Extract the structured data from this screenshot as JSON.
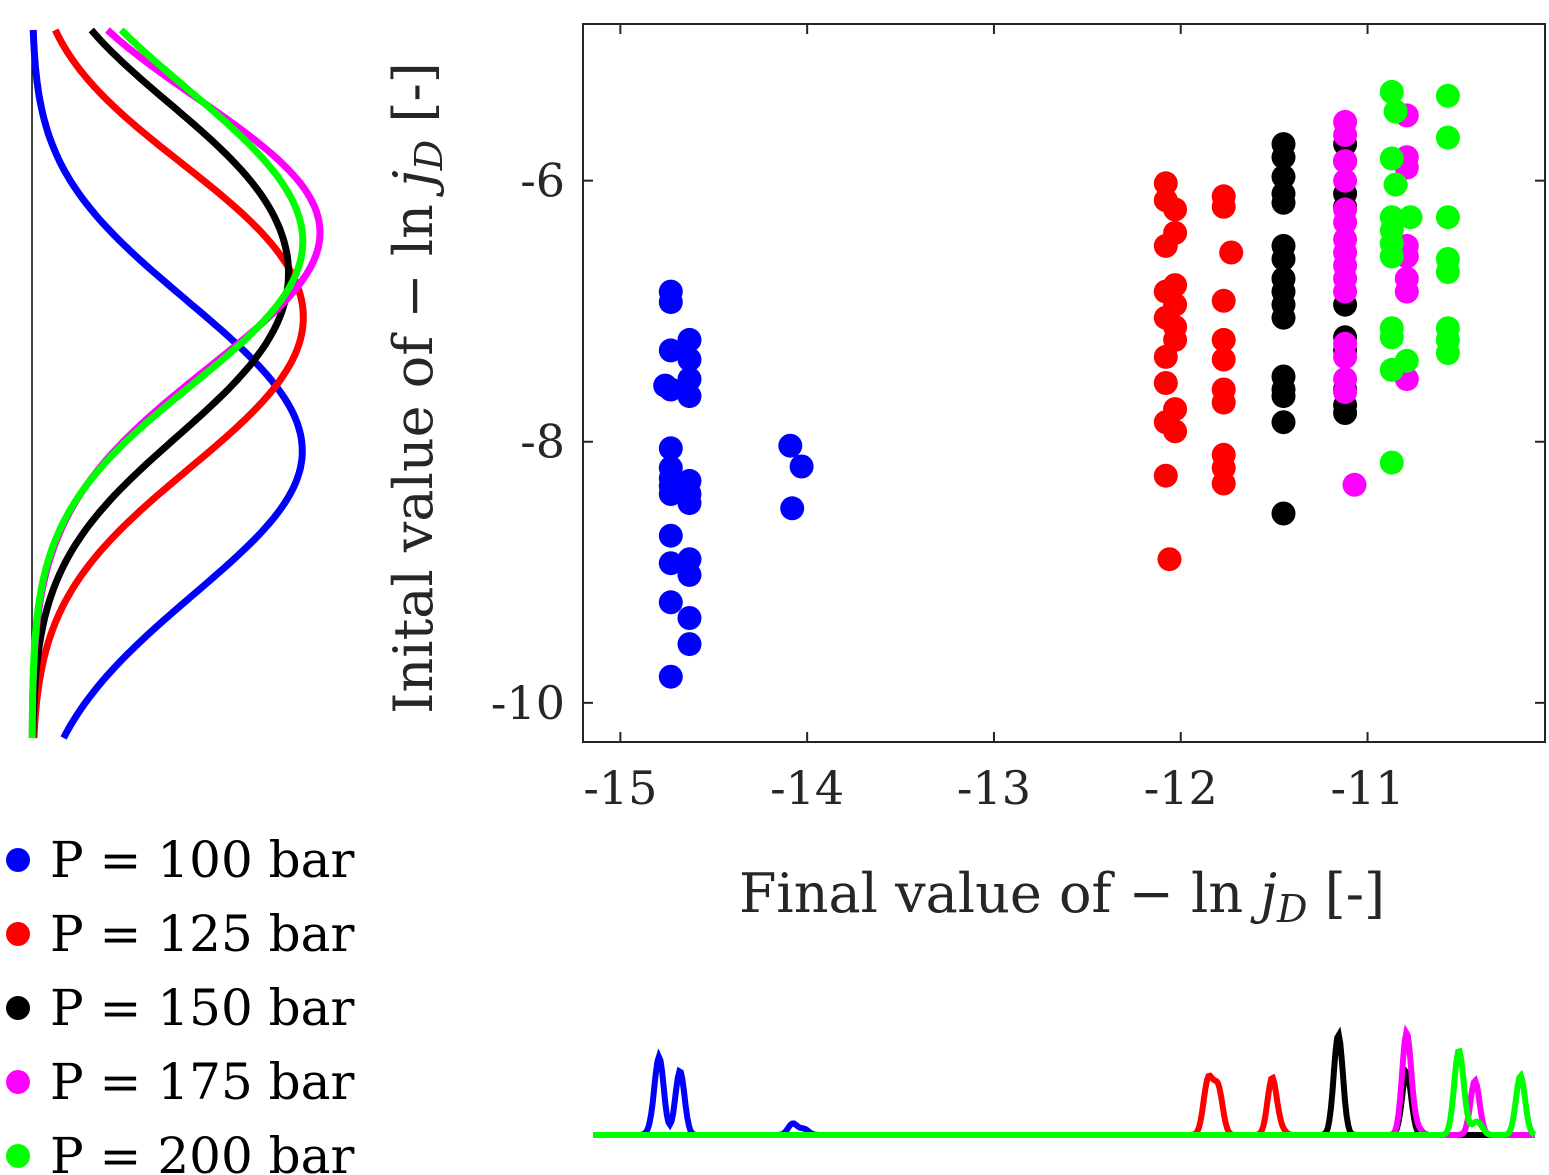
{
  "chart_data": {
    "type": "scatter",
    "xlabel": "Final value of − ln j_D [-]",
    "ylabel": "Inital value of − ln j_D [-]",
    "xlabel_parts": {
      "pre": "Final value of − ln ",
      "j": "j",
      "sub": "D",
      "post": " [-]"
    },
    "ylabel_parts": {
      "pre": "Inital value of − ln ",
      "j": "j",
      "sub": "D",
      "post": " [-]"
    },
    "xlim": [
      -15.2,
      -10.05
    ],
    "ylim": [
      -10.3,
      -4.8
    ],
    "xticks": [
      -15,
      -14,
      -13,
      -12,
      -11
    ],
    "yticks": [
      -10,
      -8,
      -6
    ],
    "grid": false,
    "legend_position": "bottom-left",
    "series": [
      {
        "name": "P = 100 bar",
        "color": "#0000ff",
        "points": [
          [
            -14.73,
            -6.85
          ],
          [
            -14.73,
            -6.93
          ],
          [
            -14.73,
            -7.3
          ],
          [
            -14.76,
            -7.57
          ],
          [
            -14.73,
            -7.6
          ],
          [
            -14.63,
            -7.22
          ],
          [
            -14.63,
            -7.37
          ],
          [
            -14.63,
            -7.52
          ],
          [
            -14.63,
            -7.65
          ],
          [
            -14.73,
            -8.05
          ],
          [
            -14.73,
            -8.2
          ],
          [
            -14.73,
            -8.28
          ],
          [
            -14.73,
            -8.34
          ],
          [
            -14.73,
            -8.4
          ],
          [
            -14.63,
            -8.3
          ],
          [
            -14.63,
            -8.4
          ],
          [
            -14.63,
            -8.47
          ],
          [
            -14.73,
            -8.72
          ],
          [
            -14.73,
            -8.93
          ],
          [
            -14.63,
            -8.9
          ],
          [
            -14.63,
            -9.02
          ],
          [
            -14.73,
            -9.23
          ],
          [
            -14.63,
            -9.35
          ],
          [
            -14.63,
            -9.55
          ],
          [
            -14.73,
            -9.8
          ],
          [
            -14.09,
            -8.03
          ],
          [
            -14.03,
            -8.19
          ],
          [
            -14.08,
            -8.51
          ]
        ]
      },
      {
        "name": "P = 125 bar",
        "color": "#ff0000",
        "points": [
          [
            -12.08,
            -6.02
          ],
          [
            -12.08,
            -6.15
          ],
          [
            -12.03,
            -6.22
          ],
          [
            -12.03,
            -6.4
          ],
          [
            -12.08,
            -6.5
          ],
          [
            -12.03,
            -6.8
          ],
          [
            -12.08,
            -6.85
          ],
          [
            -12.03,
            -6.95
          ],
          [
            -12.08,
            -7.05
          ],
          [
            -12.03,
            -7.12
          ],
          [
            -12.03,
            -7.22
          ],
          [
            -12.08,
            -7.35
          ],
          [
            -12.08,
            -7.55
          ],
          [
            -12.03,
            -7.75
          ],
          [
            -12.08,
            -7.85
          ],
          [
            -12.03,
            -7.92
          ],
          [
            -12.08,
            -8.26
          ],
          [
            -12.06,
            -8.9
          ],
          [
            -11.77,
            -6.12
          ],
          [
            -11.77,
            -6.2
          ],
          [
            -11.73,
            -6.55
          ],
          [
            -11.77,
            -6.92
          ],
          [
            -11.77,
            -7.22
          ],
          [
            -11.77,
            -7.37
          ],
          [
            -11.77,
            -7.6
          ],
          [
            -11.77,
            -7.7
          ],
          [
            -11.77,
            -8.1
          ],
          [
            -11.77,
            -8.2
          ],
          [
            -11.77,
            -8.32
          ]
        ]
      },
      {
        "name": "P = 150 bar",
        "color": "#000000",
        "points": [
          [
            -11.45,
            -5.72
          ],
          [
            -11.45,
            -5.82
          ],
          [
            -11.45,
            -5.97
          ],
          [
            -11.45,
            -6.1
          ],
          [
            -11.45,
            -6.17
          ],
          [
            -11.45,
            -6.5
          ],
          [
            -11.45,
            -6.6
          ],
          [
            -11.45,
            -6.75
          ],
          [
            -11.45,
            -6.85
          ],
          [
            -11.45,
            -6.95
          ],
          [
            -11.45,
            -7.05
          ],
          [
            -11.45,
            -7.5
          ],
          [
            -11.45,
            -7.6
          ],
          [
            -11.45,
            -7.65
          ],
          [
            -11.45,
            -7.85
          ],
          [
            -11.45,
            -8.55
          ],
          [
            -11.12,
            -5.72
          ],
          [
            -11.12,
            -5.85
          ],
          [
            -11.12,
            -6.1
          ],
          [
            -11.12,
            -6.2
          ],
          [
            -11.12,
            -6.95
          ],
          [
            -11.12,
            -7.2
          ],
          [
            -11.12,
            -7.3
          ],
          [
            -11.12,
            -7.6
          ],
          [
            -11.12,
            -7.72
          ],
          [
            -11.12,
            -7.78
          ]
        ]
      },
      {
        "name": "P = 175 bar",
        "color": "#ff00ff",
        "points": [
          [
            -11.12,
            -5.55
          ],
          [
            -11.12,
            -5.65
          ],
          [
            -11.12,
            -5.85
          ],
          [
            -11.12,
            -6.0
          ],
          [
            -11.12,
            -6.22
          ],
          [
            -11.12,
            -6.32
          ],
          [
            -11.12,
            -6.45
          ],
          [
            -11.12,
            -6.55
          ],
          [
            -11.12,
            -6.65
          ],
          [
            -11.12,
            -6.75
          ],
          [
            -11.12,
            -6.85
          ],
          [
            -11.12,
            -7.25
          ],
          [
            -11.12,
            -7.35
          ],
          [
            -11.12,
            -7.52
          ],
          [
            -11.12,
            -7.62
          ],
          [
            -11.07,
            -8.33
          ],
          [
            -10.79,
            -5.5
          ],
          [
            -10.79,
            -5.82
          ],
          [
            -10.79,
            -5.9
          ],
          [
            -10.79,
            -6.5
          ],
          [
            -10.79,
            -6.58
          ],
          [
            -10.79,
            -6.75
          ],
          [
            -10.79,
            -6.85
          ],
          [
            -10.79,
            -7.52
          ]
        ]
      },
      {
        "name": "P = 200 bar",
        "color": "#00ff00",
        "points": [
          [
            -10.87,
            -5.32
          ],
          [
            -10.85,
            -5.47
          ],
          [
            -10.87,
            -5.83
          ],
          [
            -10.85,
            -6.03
          ],
          [
            -10.87,
            -6.28
          ],
          [
            -10.87,
            -6.38
          ],
          [
            -10.87,
            -6.48
          ],
          [
            -10.87,
            -6.58
          ],
          [
            -10.77,
            -6.28
          ],
          [
            -10.87,
            -7.13
          ],
          [
            -10.87,
            -7.2
          ],
          [
            -10.87,
            -7.45
          ],
          [
            -10.79,
            -7.38
          ],
          [
            -10.87,
            -8.16
          ],
          [
            -10.57,
            -5.35
          ],
          [
            -10.57,
            -5.67
          ],
          [
            -10.57,
            -6.28
          ],
          [
            -10.57,
            -6.6
          ],
          [
            -10.57,
            -6.7
          ],
          [
            -10.57,
            -7.13
          ],
          [
            -10.57,
            -7.22
          ],
          [
            -10.57,
            -7.32
          ]
        ]
      }
    ],
    "marginals": {
      "left_description": "kernel density of initial values (rotated)",
      "bottom_description": "kernel density of final values"
    }
  }
}
